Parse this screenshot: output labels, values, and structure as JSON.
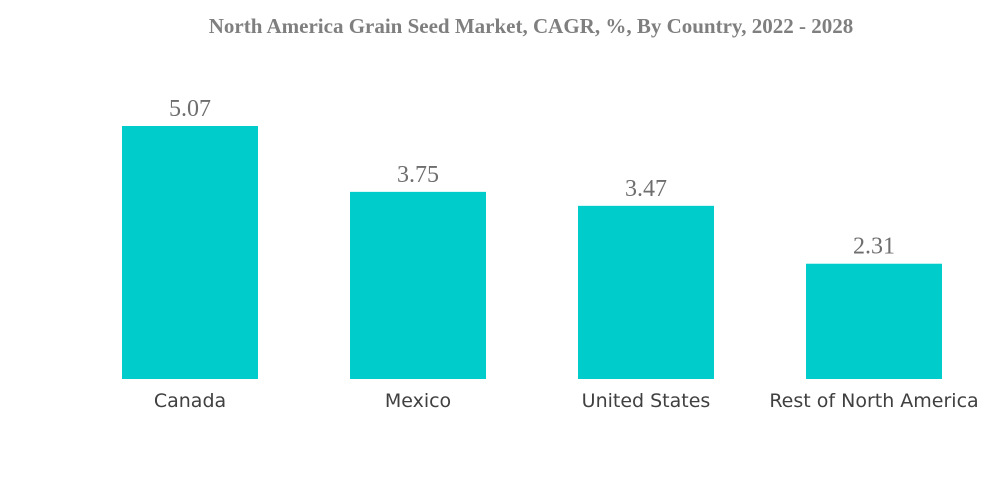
{
  "chart_data": {
    "type": "bar",
    "title": "North America Grain Seed Market, CAGR, %, By Country, 2022 - 2028",
    "categories": [
      "Canada",
      "Mexico",
      "United States",
      "Rest of North America"
    ],
    "values": [
      5.07,
      3.75,
      3.47,
      2.31
    ],
    "data_labels": [
      "5.07",
      "3.75",
      "3.47",
      "2.31"
    ],
    "xlabel": "",
    "ylabel": "",
    "ylim": [
      0,
      5.07
    ],
    "grid": false,
    "legend": "none",
    "bar_color": "#00cccc"
  }
}
